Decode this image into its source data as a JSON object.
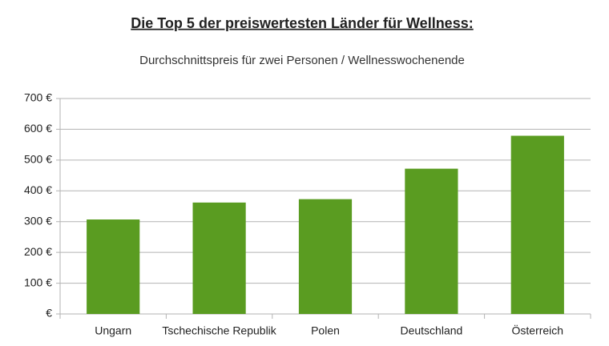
{
  "chart_data": {
    "type": "bar",
    "title": "Die Top 5 der preiswertesten Länder für Wellness:",
    "subtitle": "Durchschnittspreis für zwei Personen / Wellnesswochenende",
    "categories": [
      "Ungarn",
      "Tschechische Republik",
      "Polen",
      "Deutschland",
      "Österreich"
    ],
    "values": [
      307,
      362,
      373,
      472,
      579
    ],
    "color": "#5a9c21",
    "ylim": [
      0,
      700
    ],
    "yticks": [
      {
        "value": 0,
        "label": "€"
      },
      {
        "value": 100,
        "label": "100 €"
      },
      {
        "value": 200,
        "label": "200 €"
      },
      {
        "value": 300,
        "label": "300 €"
      },
      {
        "value": 400,
        "label": "400 €"
      },
      {
        "value": 500,
        "label": "500 €"
      },
      {
        "value": 600,
        "label": "600 €"
      },
      {
        "value": 700,
        "label": "700 €"
      }
    ],
    "grid": true
  }
}
